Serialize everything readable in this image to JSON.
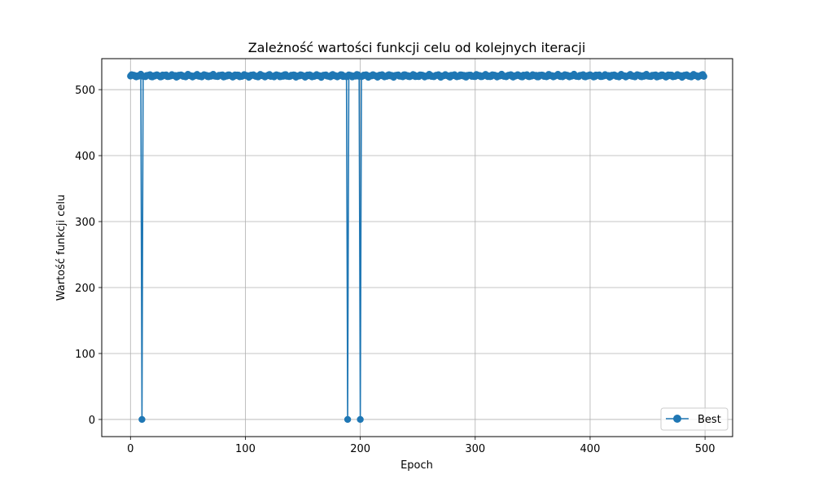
{
  "chart_data": {
    "type": "line",
    "title": "Zależność wartości funkcji celu od kolejnych iteracji",
    "xlabel": "Epoch",
    "ylabel": "Wartość funkcji celu",
    "xlim": [
      -25,
      524
    ],
    "ylim": [
      -26,
      547
    ],
    "xticks": [
      0,
      100,
      200,
      300,
      400,
      500
    ],
    "yticks": [
      0,
      100,
      200,
      300,
      400,
      500
    ],
    "grid": true,
    "legend_position": "lower right",
    "color": "#1f77b4",
    "series": [
      {
        "name": "Best",
        "marker": "circle",
        "x_start": 0,
        "x_end": 499,
        "baseline": 521,
        "drops": [
          {
            "x": 10,
            "y": 0
          },
          {
            "x": 189,
            "y": 0
          },
          {
            "x": 200,
            "y": 0
          }
        ]
      }
    ]
  }
}
